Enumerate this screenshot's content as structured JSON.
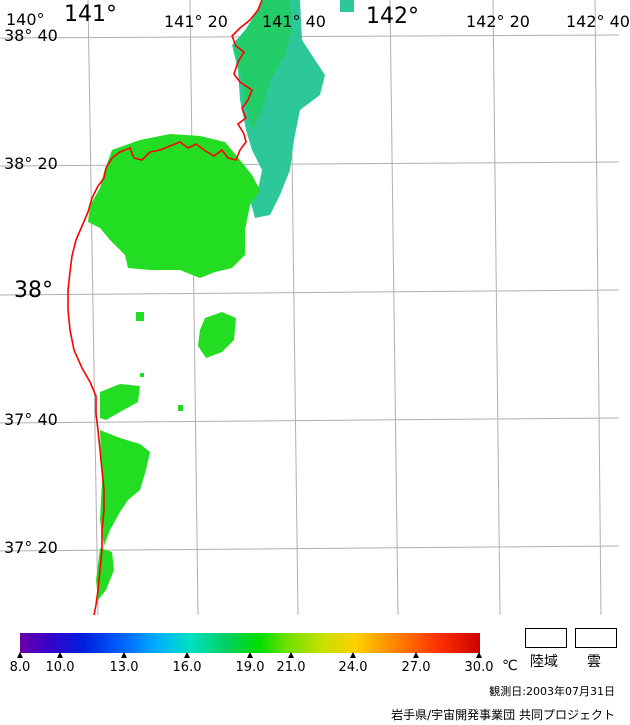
{
  "map": {
    "lon_labels_small": [
      "140°",
      "141° 20",
      "141° 40",
      "142° 20",
      "142° 40"
    ],
    "lon_labels_large": [
      "141°",
      "142°"
    ],
    "lat_labels_small": [
      "38° 40",
      "38° 20",
      "37° 40",
      "37° 20"
    ],
    "lat_labels_large": [
      "38°"
    ],
    "coastline_color": "#ff0000",
    "grid_color": "#b0b0b0",
    "sst_color_main": "#22dd22",
    "sst_color_cool": "#22c8a0"
  },
  "legend": {
    "ticks": [
      "8.0",
      "10.0",
      "13.0",
      "16.0",
      "19.0",
      "21.0",
      "24.0",
      "27.0",
      "30.0"
    ],
    "unit": "℃",
    "land_label": "陸域",
    "cloud_label": "雲",
    "colors": [
      "#6a00a8",
      "#0020e0",
      "#00b0ff",
      "#00dd00",
      "#ffd000",
      "#ff8000",
      "#cc0000"
    ]
  },
  "footer": {
    "observation_date": "観測日:2003年07月31日",
    "credit": "岩手県/宇宙開発事業団 共同プロジェクト"
  }
}
